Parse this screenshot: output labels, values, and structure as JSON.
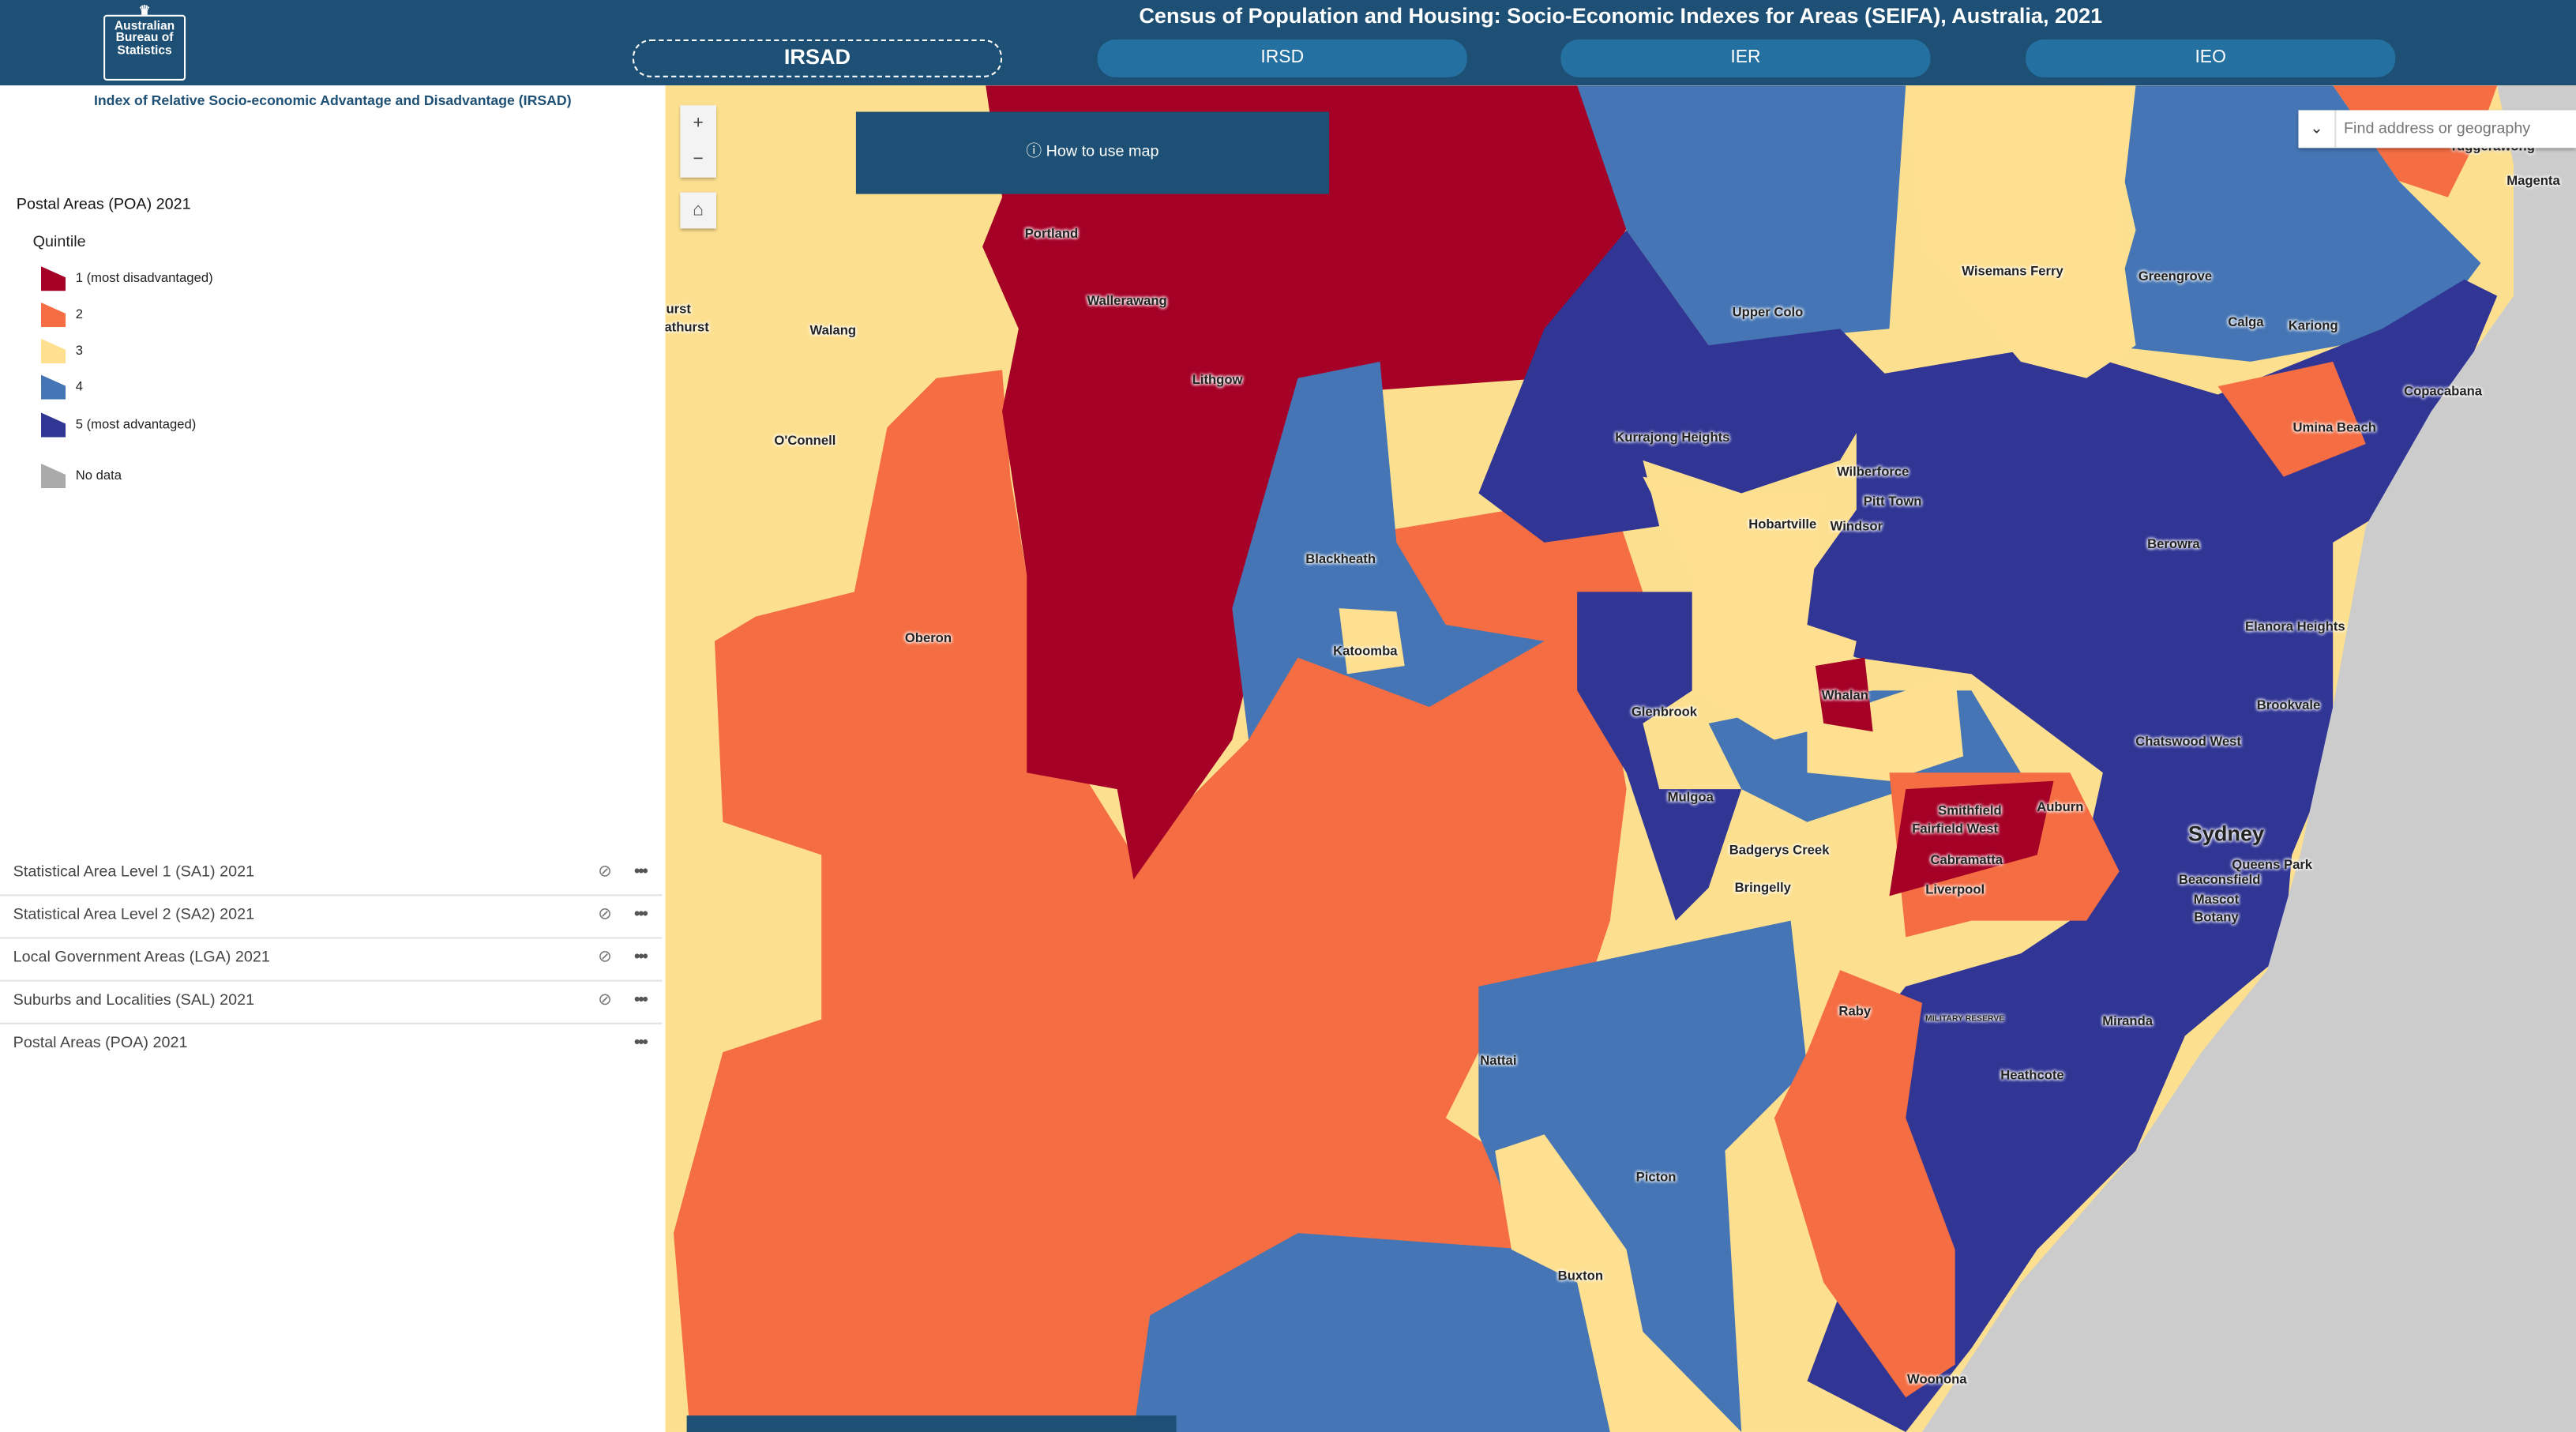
{
  "header": {
    "logo_text": "Australian Bureau of Statistics",
    "title": "Census of Population and Housing: Socio-Economic Indexes for Areas (SEIFA), Australia, 2021",
    "tabs": [
      {
        "label": "IRSAD",
        "active": true
      },
      {
        "label": "IRSD",
        "active": false
      },
      {
        "label": "IER",
        "active": false
      },
      {
        "label": "IEO",
        "active": false
      }
    ]
  },
  "sidebar": {
    "subtitle": "Index of Relative Socio-economic Advantage and Disadvantage (IRSAD)",
    "legend": {
      "layer_title": "Postal Areas (POA) 2021",
      "field": "Quintile",
      "items": [
        {
          "label": "1 (most disadvantaged)",
          "color": "#a50026"
        },
        {
          "label": "2",
          "color": "#f46d43"
        },
        {
          "label": "3",
          "color": "#fee090"
        },
        {
          "label": "4",
          "color": "#4575b4"
        },
        {
          "label": "5 (most advantaged)",
          "color": "#313695"
        },
        {
          "label": "No data",
          "color": "#aaaaaa"
        }
      ]
    },
    "layers": [
      {
        "label": "Statistical Area Level 1 (SA1) 2021",
        "hidden": true
      },
      {
        "label": "Statistical Area Level 2 (SA2) 2021",
        "hidden": true
      },
      {
        "label": "Local Government Areas (LGA) 2021",
        "hidden": true
      },
      {
        "label": "Suburbs and Localities (SAL) 2021",
        "hidden": true
      },
      {
        "label": "Postal Areas (POA) 2021",
        "hidden": false
      }
    ]
  },
  "map": {
    "zoom_in": "+",
    "zoom_out": "−",
    "how_to_label": "How to use map",
    "search_placeholder": "Find address or geography",
    "places": [
      "Portland",
      "Wallerawang",
      "Lithgow",
      "Walang",
      "O'Connell",
      "Oberon",
      "Blackheath",
      "Katoomba",
      "Glenbrook",
      "Upper Colo",
      "Wisemans Ferry",
      "Greengrove",
      "Calga",
      "Kariong",
      "Copacabana",
      "Umina Beach",
      "Kurrajong Heights",
      "Wilberforce",
      "Pitt Town",
      "Hobartville",
      "Windsor",
      "Berowra",
      "Elanora Heights",
      "Whalan",
      "Brookvale",
      "Chatswood West",
      "Mulgoa",
      "Smithfield",
      "Fairfield West",
      "Auburn",
      "Sydney",
      "Badgerys Creek",
      "Cabramatta",
      "Queens Park",
      "Beaconsfield",
      "Bringelly",
      "Liverpool",
      "Mascot",
      "Botany",
      "Raby",
      "Miranda",
      "Nattai",
      "Heathcote",
      "Picton",
      "Buxton",
      "Woonona",
      "Magenta",
      "Tuggerawong",
      "urst",
      "athurst",
      "MILITARY RESERVE"
    ]
  }
}
